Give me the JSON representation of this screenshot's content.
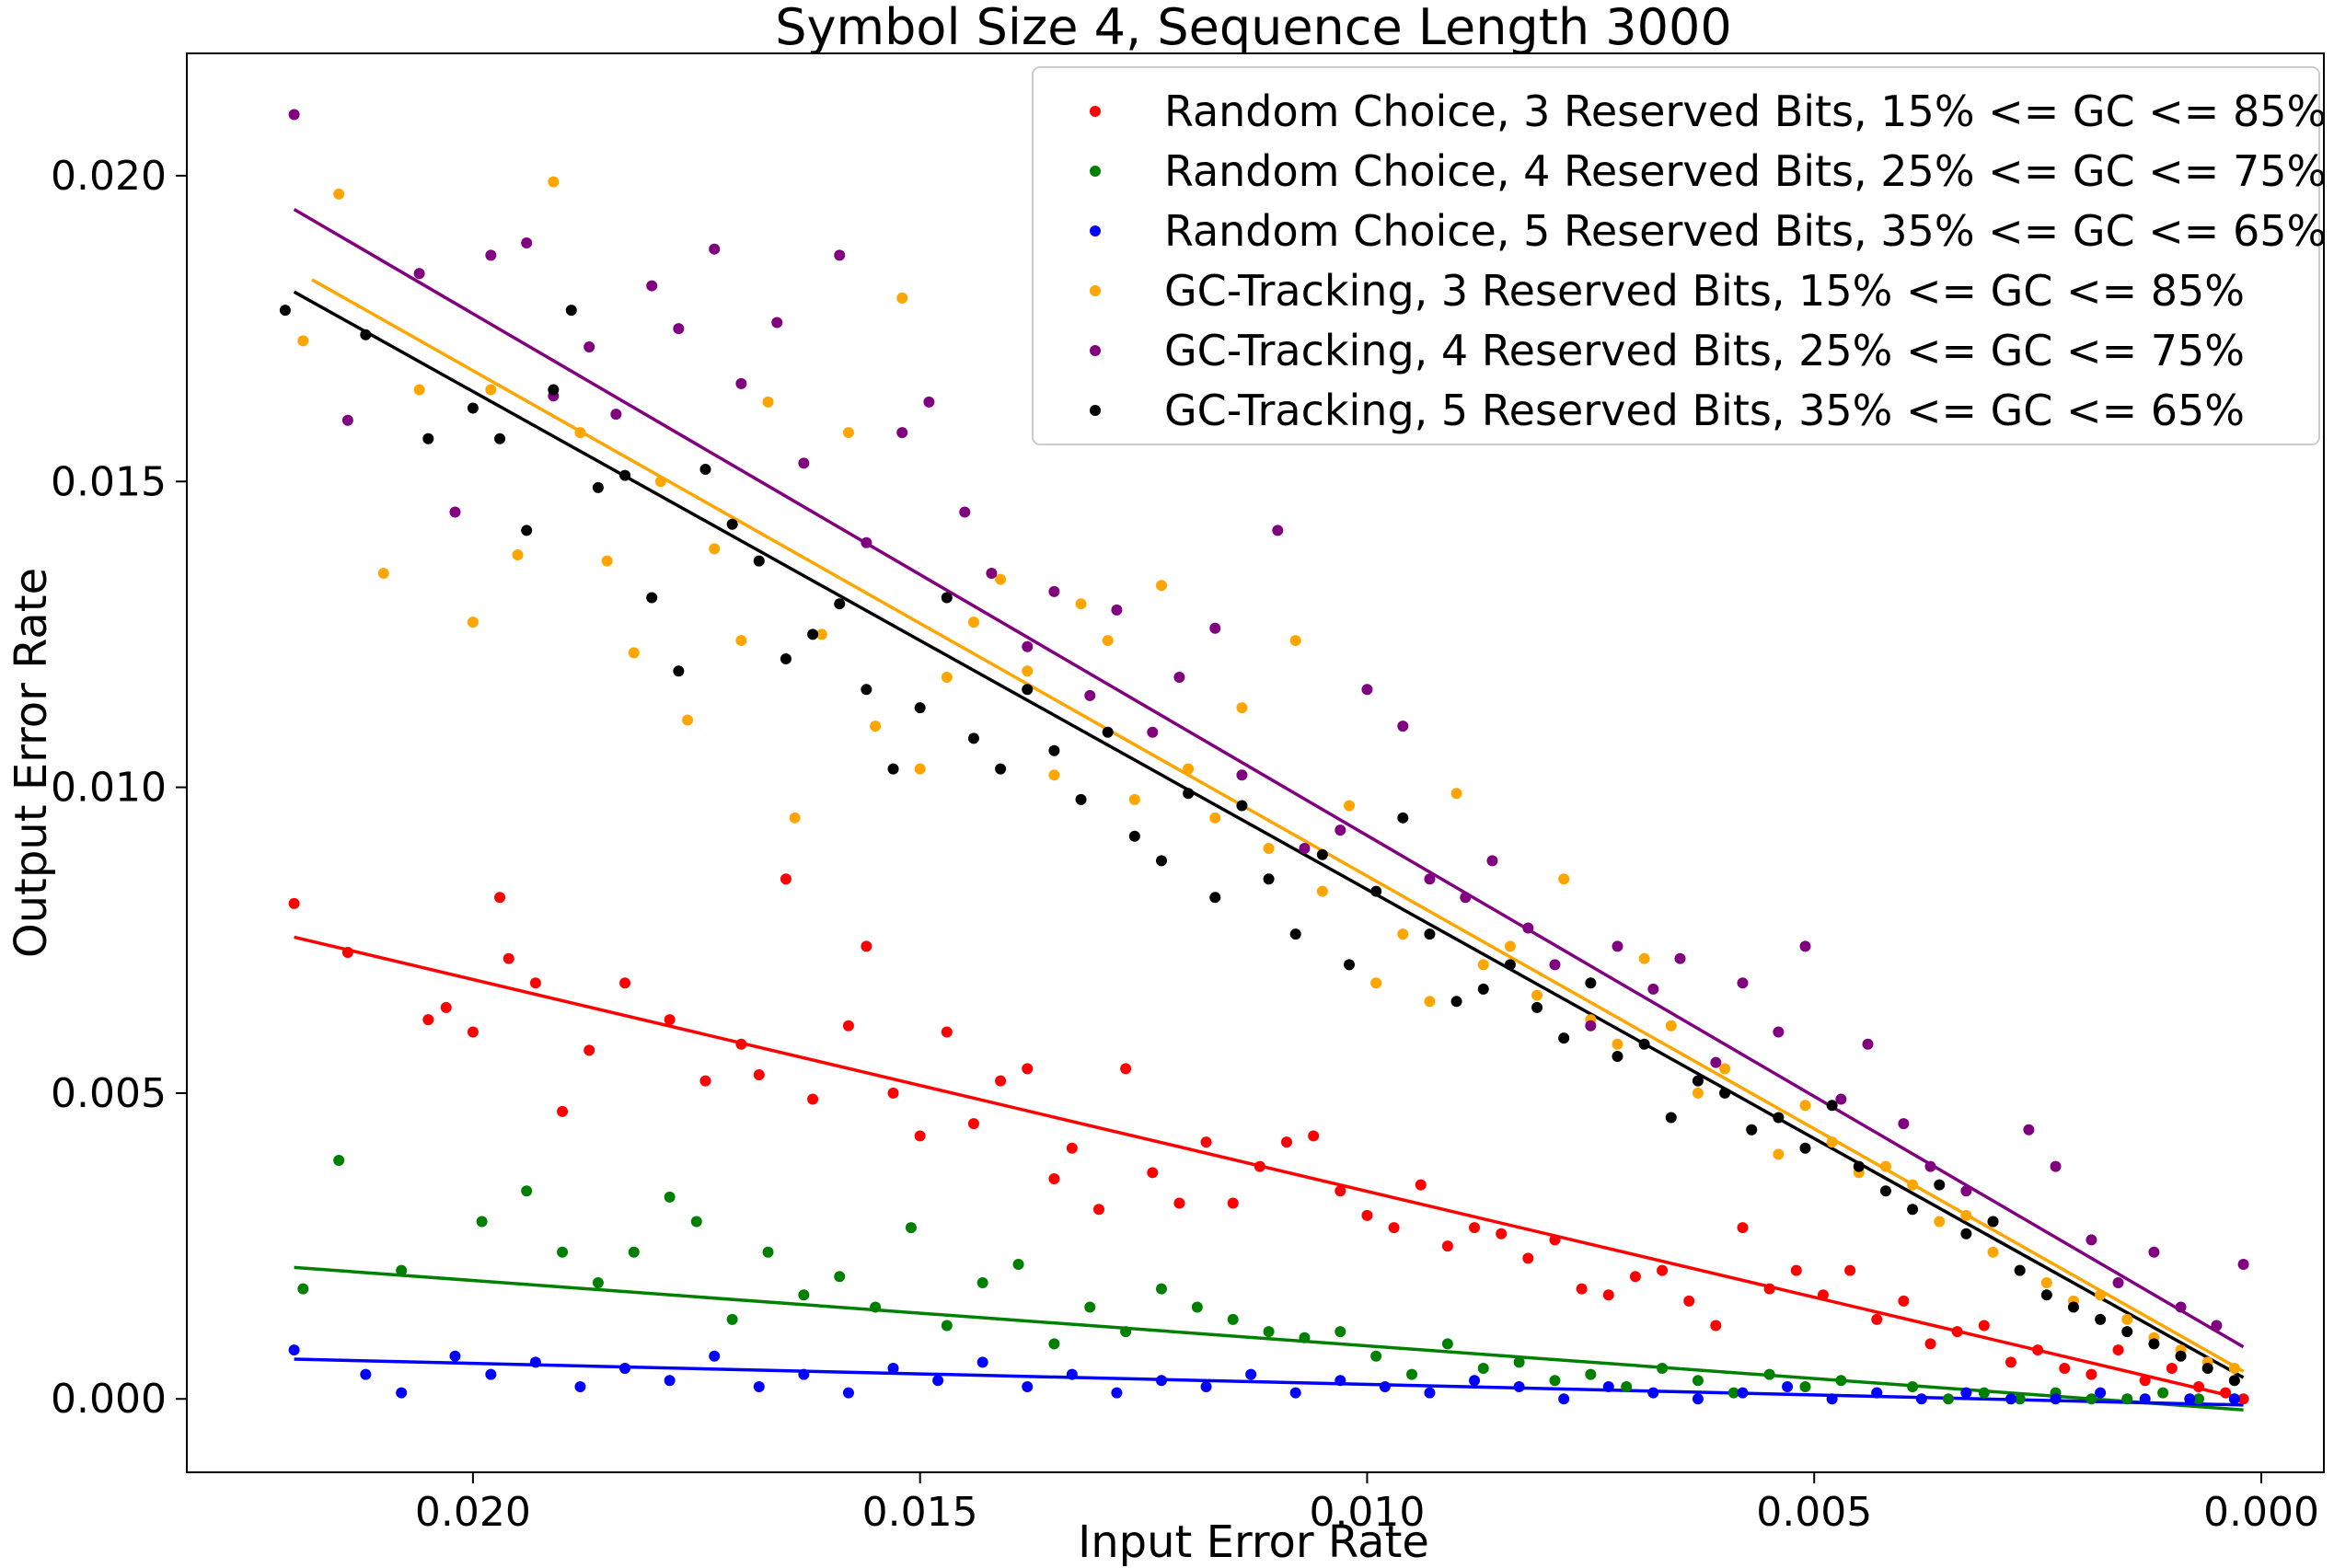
{
  "chart_data": {
    "type": "scatter",
    "title": "Symbol Size 4, Sequence Length 3000",
    "xlabel": "Input Error Rate",
    "ylabel": "Output Error Rate",
    "xlim": [
      0.0232,
      -0.0007
    ],
    "ylim": [
      -0.0012,
      0.022
    ],
    "x_inverted": true,
    "x_ticks": [
      0.02,
      0.015,
      0.01,
      0.005,
      0.0
    ],
    "x_tick_labels": [
      "0.020",
      "0.015",
      "0.010",
      "0.005",
      "0.000"
    ],
    "y_ticks": [
      0.0,
      0.005,
      0.01,
      0.015,
      0.02
    ],
    "y_tick_labels": [
      "0.000",
      "0.005",
      "0.010",
      "0.015",
      "0.020"
    ],
    "legend_position": "top-right",
    "series": [
      {
        "name": "Random Choice, 3 Reserved Bits, 15% <= GC <= 85%",
        "color": "#ff0000",
        "fit": {
          "x": [
            0.022,
            0.0002
          ],
          "y": [
            0.00755,
            0.0
          ]
        },
        "x": [
          0.022,
          0.0214,
          0.0205,
          0.0203,
          0.02,
          0.0197,
          0.0196,
          0.0193,
          0.019,
          0.0187,
          0.0183,
          0.0178,
          0.0174,
          0.017,
          0.0168,
          0.0165,
          0.0162,
          0.0158,
          0.0156,
          0.0153,
          0.015,
          0.0147,
          0.0144,
          0.0141,
          0.0138,
          0.0135,
          0.0133,
          0.013,
          0.0127,
          0.0124,
          0.0121,
          0.0118,
          0.0115,
          0.0112,
          0.0109,
          0.0106,
          0.0103,
          0.01,
          0.0097,
          0.0094,
          0.0091,
          0.0088,
          0.0085,
          0.0082,
          0.0079,
          0.0076,
          0.0073,
          0.007,
          0.0067,
          0.0064,
          0.0061,
          0.0058,
          0.0055,
          0.0052,
          0.0049,
          0.0046,
          0.0043,
          0.004,
          0.0037,
          0.0034,
          0.0031,
          0.0028,
          0.0025,
          0.0022,
          0.0019,
          0.0016,
          0.0013,
          0.001,
          0.0007,
          0.0004,
          0.0002
        ],
        "y": [
          0.0081,
          0.0073,
          0.0062,
          0.0064,
          0.006,
          0.0082,
          0.0072,
          0.0068,
          0.0047,
          0.0057,
          0.0068,
          0.0062,
          0.0052,
          0.0058,
          0.0053,
          0.0085,
          0.0049,
          0.0061,
          0.0074,
          0.005,
          0.0043,
          0.006,
          0.0045,
          0.0052,
          0.0054,
          0.0036,
          0.0041,
          0.0031,
          0.0054,
          0.0037,
          0.0032,
          0.0042,
          0.0032,
          0.0038,
          0.0042,
          0.0043,
          0.0034,
          0.003,
          0.0028,
          0.0035,
          0.0025,
          0.0028,
          0.0027,
          0.0023,
          0.0026,
          0.0018,
          0.0017,
          0.002,
          0.0021,
          0.0016,
          0.0012,
          0.0028,
          0.0018,
          0.0021,
          0.0017,
          0.0021,
          0.0013,
          0.0016,
          0.0009,
          0.0011,
          0.0012,
          0.0006,
          0.0008,
          0.0005,
          0.0004,
          0.0008,
          0.0003,
          0.0005,
          0.0002,
          0.0001,
          0.0
        ]
      },
      {
        "name": "Random Choice, 4 Reserved Bits, 25% <= GC <= 75%",
        "color": "#008000",
        "fit": {
          "x": [
            0.022,
            0.0002
          ],
          "y": [
            0.00215,
            -0.00018
          ]
        },
        "x": [
          0.0219,
          0.0215,
          0.0208,
          0.0199,
          0.0194,
          0.019,
          0.0186,
          0.0182,
          0.0178,
          0.0175,
          0.0171,
          0.0167,
          0.0163,
          0.0159,
          0.0155,
          0.0151,
          0.0147,
          0.0143,
          0.0139,
          0.0135,
          0.0131,
          0.0127,
          0.0123,
          0.0119,
          0.0115,
          0.0111,
          0.0107,
          0.0103,
          0.0099,
          0.0095,
          0.0091,
          0.0087,
          0.0083,
          0.0079,
          0.0075,
          0.0071,
          0.0067,
          0.0063,
          0.0059,
          0.0055,
          0.0051,
          0.0047,
          0.0043,
          0.0039,
          0.0035,
          0.0031,
          0.0027,
          0.0023,
          0.0019,
          0.0015,
          0.0011,
          0.0007,
          0.0003
        ],
        "y": [
          0.0018,
          0.0039,
          0.0021,
          0.0029,
          0.0034,
          0.0024,
          0.0019,
          0.0024,
          0.0033,
          0.0029,
          0.0013,
          0.0024,
          0.0017,
          0.002,
          0.0015,
          0.0028,
          0.0012,
          0.0019,
          0.0022,
          0.0009,
          0.0015,
          0.0011,
          0.0018,
          0.0015,
          0.0013,
          0.0011,
          0.001,
          0.0011,
          0.0007,
          0.0004,
          0.0009,
          0.0005,
          0.0006,
          0.0003,
          0.0004,
          0.0002,
          0.0005,
          0.0003,
          0.0001,
          0.0004,
          0.0002,
          0.0003,
          0.0001,
          0.0002,
          0.0,
          0.0001,
          0.0,
          0.0001,
          0.0,
          0.0,
          0.0001,
          0.0,
          0.0
        ]
      },
      {
        "name": "Random Choice, 5 Reserved Bits, 35% <= GC <= 65%",
        "color": "#0000ff",
        "fit": {
          "x": [
            0.022,
            0.0002
          ],
          "y": [
            0.00065,
            -0.0001
          ]
        },
        "x": [
          0.022,
          0.0212,
          0.0208,
          0.0202,
          0.0198,
          0.0193,
          0.0188,
          0.0183,
          0.0178,
          0.0173,
          0.0168,
          0.0163,
          0.0158,
          0.0153,
          0.0148,
          0.0143,
          0.0138,
          0.0133,
          0.0128,
          0.0123,
          0.0118,
          0.0113,
          0.0108,
          0.0103,
          0.0098,
          0.0093,
          0.0088,
          0.0083,
          0.0078,
          0.0073,
          0.0068,
          0.0063,
          0.0058,
          0.0053,
          0.0048,
          0.0043,
          0.0038,
          0.0033,
          0.0028,
          0.0023,
          0.0018,
          0.0013,
          0.0008,
          0.0003
        ],
        "y": [
          0.0008,
          0.0004,
          0.0001,
          0.0007,
          0.0004,
          0.0006,
          0.0002,
          0.0005,
          0.0003,
          0.0007,
          0.0002,
          0.0004,
          0.0001,
          0.0005,
          0.0003,
          0.0006,
          0.0002,
          0.0004,
          0.0001,
          0.0003,
          0.0002,
          0.0004,
          0.0001,
          0.0003,
          0.0002,
          0.0001,
          0.0003,
          0.0002,
          0.0,
          0.0002,
          0.0001,
          0.0,
          0.0001,
          0.0002,
          0.0,
          0.0001,
          0.0,
          0.0001,
          0.0,
          0.0,
          0.0001,
          0.0,
          0.0,
          0.0
        ]
      },
      {
        "name": "GC-Tracking, 3 Reserved Bits, 15% <= GC <= 85%",
        "color": "#ffa500",
        "fit": {
          "x": [
            0.0218,
            0.0002
          ],
          "y": [
            0.0183,
            0.00045
          ]
        },
        "x": [
          0.0219,
          0.0215,
          0.021,
          0.0206,
          0.02,
          0.0198,
          0.0195,
          0.0191,
          0.0188,
          0.0185,
          0.0182,
          0.0179,
          0.0176,
          0.0173,
          0.017,
          0.0167,
          0.0164,
          0.0161,
          0.0158,
          0.0155,
          0.0152,
          0.015,
          0.0147,
          0.0144,
          0.0141,
          0.0138,
          0.0135,
          0.0132,
          0.0129,
          0.0126,
          0.0123,
          0.012,
          0.0117,
          0.0114,
          0.0111,
          0.0108,
          0.0105,
          0.0102,
          0.0099,
          0.0096,
          0.0093,
          0.009,
          0.0087,
          0.0084,
          0.0081,
          0.0078,
          0.0075,
          0.0072,
          0.0069,
          0.0066,
          0.0063,
          0.006,
          0.0057,
          0.0054,
          0.0051,
          0.0048,
          0.0045,
          0.0042,
          0.0039,
          0.0036,
          0.0033,
          0.003,
          0.0027,
          0.0024,
          0.0021,
          0.0018,
          0.0015,
          0.0012,
          0.0009,
          0.0006,
          0.0003
        ],
        "y": [
          0.0173,
          0.0197,
          0.0135,
          0.0165,
          0.0127,
          0.0165,
          0.0138,
          0.0199,
          0.0158,
          0.0137,
          0.0122,
          0.015,
          0.0111,
          0.0139,
          0.0124,
          0.0163,
          0.0095,
          0.0125,
          0.0158,
          0.011,
          0.018,
          0.0103,
          0.0118,
          0.0127,
          0.0134,
          0.0119,
          0.0102,
          0.013,
          0.0124,
          0.0098,
          0.0133,
          0.0103,
          0.0095,
          0.0113,
          0.009,
          0.0124,
          0.0083,
          0.0097,
          0.0068,
          0.0076,
          0.0065,
          0.0099,
          0.0071,
          0.0074,
          0.0066,
          0.0085,
          0.0062,
          0.0058,
          0.0072,
          0.0061,
          0.005,
          0.0054,
          0.0044,
          0.004,
          0.0048,
          0.0042,
          0.0037,
          0.0038,
          0.0035,
          0.0029,
          0.003,
          0.0024,
          0.0021,
          0.0019,
          0.0016,
          0.0017,
          0.0013,
          0.001,
          0.0008,
          0.0006,
          0.0005
        ]
      },
      {
        "name": "GC-Tracking, 4 Reserved Bits, 25% <= GC <= 75%",
        "color": "#800080",
        "fit": {
          "x": [
            0.022,
            0.0002
          ],
          "y": [
            0.01945,
            0.00085
          ]
        },
        "x": [
          0.022,
          0.0214,
          0.0206,
          0.0202,
          0.0198,
          0.0194,
          0.0191,
          0.0187,
          0.0184,
          0.018,
          0.0177,
          0.0173,
          0.017,
          0.0166,
          0.0163,
          0.0159,
          0.0156,
          0.0152,
          0.0149,
          0.0145,
          0.0142,
          0.0138,
          0.0135,
          0.0131,
          0.0128,
          0.0124,
          0.0121,
          0.0117,
          0.0114,
          0.011,
          0.0107,
          0.0103,
          0.01,
          0.0096,
          0.0093,
          0.0089,
          0.0086,
          0.0082,
          0.0079,
          0.0075,
          0.0072,
          0.0068,
          0.0065,
          0.0061,
          0.0058,
          0.0054,
          0.0051,
          0.0047,
          0.0044,
          0.004,
          0.0037,
          0.0033,
          0.003,
          0.0026,
          0.0023,
          0.0019,
          0.0016,
          0.0012,
          0.0009,
          0.0005,
          0.0002
        ],
        "y": [
          0.021,
          0.016,
          0.0184,
          0.0145,
          0.0187,
          0.0189,
          0.0164,
          0.0172,
          0.0161,
          0.0182,
          0.0175,
          0.0188,
          0.0166,
          0.0176,
          0.0153,
          0.0187,
          0.014,
          0.0158,
          0.0163,
          0.0145,
          0.0135,
          0.0123,
          0.0132,
          0.0115,
          0.0129,
          0.0109,
          0.0118,
          0.0126,
          0.0102,
          0.0142,
          0.009,
          0.0093,
          0.0116,
          0.011,
          0.0085,
          0.0082,
          0.0088,
          0.0077,
          0.0071,
          0.0061,
          0.0074,
          0.0067,
          0.0072,
          0.0055,
          0.0068,
          0.006,
          0.0074,
          0.0049,
          0.0058,
          0.0045,
          0.0038,
          0.0034,
          0.0029,
          0.0044,
          0.0038,
          0.0026,
          0.0019,
          0.0024,
          0.0015,
          0.0012,
          0.0022
        ]
      },
      {
        "name": "GC-Tracking, 5 Reserved Bits, 35% <= GC <= 65%",
        "color": "#000000",
        "fit": {
          "x": [
            0.022,
            0.0002
          ],
          "y": [
            0.0181,
            0.00035
          ]
        },
        "x": [
          0.0221,
          0.0212,
          0.0205,
          0.02,
          0.0197,
          0.0194,
          0.0191,
          0.0189,
          0.0186,
          0.0183,
          0.018,
          0.0177,
          0.0174,
          0.0171,
          0.0168,
          0.0165,
          0.0162,
          0.0159,
          0.0156,
          0.0153,
          0.015,
          0.0147,
          0.0144,
          0.0141,
          0.0138,
          0.0135,
          0.0132,
          0.0129,
          0.0126,
          0.0123,
          0.012,
          0.0117,
          0.0114,
          0.0111,
          0.0108,
          0.0105,
          0.0102,
          0.0099,
          0.0096,
          0.0093,
          0.009,
          0.0087,
          0.0084,
          0.0081,
          0.0078,
          0.0075,
          0.0072,
          0.0069,
          0.0066,
          0.0063,
          0.006,
          0.0057,
          0.0054,
          0.0051,
          0.0048,
          0.0045,
          0.0042,
          0.0039,
          0.0036,
          0.0033,
          0.003,
          0.0027,
          0.0024,
          0.0021,
          0.0018,
          0.0015,
          0.0012,
          0.0009,
          0.0006,
          0.0003
        ],
        "y": [
          0.0178,
          0.0174,
          0.0157,
          0.0162,
          0.0157,
          0.0142,
          0.0165,
          0.0178,
          0.0149,
          0.0151,
          0.0131,
          0.0119,
          0.0152,
          0.0143,
          0.0137,
          0.0121,
          0.0125,
          0.013,
          0.0116,
          0.0103,
          0.0113,
          0.0131,
          0.0108,
          0.0103,
          0.0116,
          0.0106,
          0.0098,
          0.0109,
          0.0092,
          0.0088,
          0.0099,
          0.0082,
          0.0097,
          0.0085,
          0.0076,
          0.0089,
          0.0071,
          0.0083,
          0.0095,
          0.0076,
          0.0065,
          0.0067,
          0.0071,
          0.0064,
          0.0059,
          0.0068,
          0.0056,
          0.0058,
          0.0046,
          0.0052,
          0.005,
          0.0044,
          0.0046,
          0.0041,
          0.0048,
          0.0038,
          0.0034,
          0.0031,
          0.0035,
          0.0027,
          0.0029,
          0.0021,
          0.0017,
          0.0015,
          0.0013,
          0.0011,
          0.0009,
          0.0007,
          0.0005,
          0.0003
        ]
      }
    ]
  }
}
